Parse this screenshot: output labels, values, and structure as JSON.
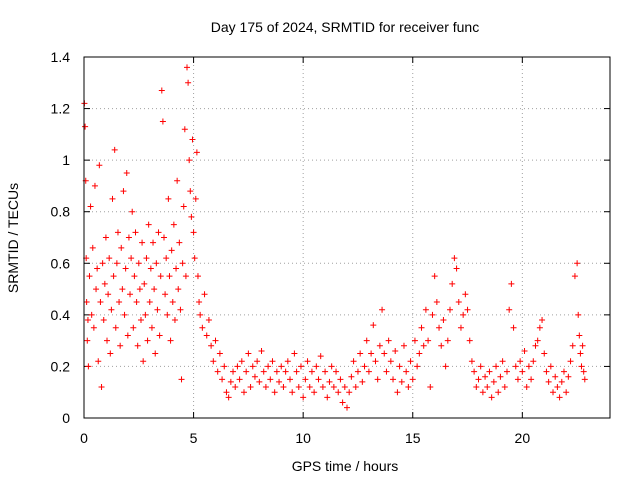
{
  "chart_data": {
    "type": "scatter",
    "title": "Day 175 of 2024, SRMTID for receiver func",
    "xlabel": "GPS time / hours",
    "ylabel": "SRMTID / TECUs",
    "xlim": [
      0,
      24
    ],
    "ylim": [
      0,
      1.4
    ],
    "grid": true,
    "x_ticks": [
      0,
      5,
      10,
      15,
      20
    ],
    "x_tick_labels": [
      "0",
      "5",
      "10",
      "15",
      "20"
    ],
    "y_ticks": [
      0,
      0.2,
      0.4,
      0.6,
      0.8,
      1.0,
      1.2,
      1.4
    ],
    "y_tick_labels": [
      "0",
      "0.2",
      "0.4",
      "0.6",
      "0.8",
      "1",
      "1.2",
      "1.4"
    ],
    "marker": "+",
    "series": [
      {
        "name": "SRMTID",
        "color": "#ff0000",
        "points": [
          [
            0.02,
            1.22
          ],
          [
            0.05,
            1.13
          ],
          [
            0.08,
            0.92
          ],
          [
            0.1,
            0.62
          ],
          [
            0.12,
            0.45
          ],
          [
            0.15,
            0.3
          ],
          [
            0.18,
            0.38
          ],
          [
            0.2,
            0.2
          ],
          [
            0.25,
            0.55
          ],
          [
            0.3,
            0.82
          ],
          [
            0.35,
            0.4
          ],
          [
            0.4,
            0.66
          ],
          [
            0.45,
            0.35
          ],
          [
            0.5,
            0.9
          ],
          [
            0.55,
            0.5
          ],
          [
            0.6,
            0.58
          ],
          [
            0.65,
            0.22
          ],
          [
            0.7,
            0.98
          ],
          [
            0.75,
            0.45
          ],
          [
            0.8,
            0.12
          ],
          [
            0.85,
            0.6
          ],
          [
            0.9,
            0.38
          ],
          [
            0.95,
            0.52
          ],
          [
            1.0,
            0.7
          ],
          [
            1.05,
            0.3
          ],
          [
            1.1,
            0.48
          ],
          [
            1.15,
            0.62
          ],
          [
            1.2,
            0.25
          ],
          [
            1.25,
            0.42
          ],
          [
            1.3,
            0.85
          ],
          [
            1.35,
            0.55
          ],
          [
            1.4,
            1.04
          ],
          [
            1.45,
            0.35
          ],
          [
            1.5,
            0.6
          ],
          [
            1.55,
            0.72
          ],
          [
            1.6,
            0.45
          ],
          [
            1.65,
            0.28
          ],
          [
            1.7,
            0.66
          ],
          [
            1.75,
            0.5
          ],
          [
            1.8,
            0.88
          ],
          [
            1.85,
            0.4
          ],
          [
            1.9,
            0.58
          ],
          [
            1.95,
            0.95
          ],
          [
            2.0,
            0.32
          ],
          [
            2.05,
            0.7
          ],
          [
            2.1,
            0.48
          ],
          [
            2.15,
            0.62
          ],
          [
            2.2,
            0.8
          ],
          [
            2.25,
            0.35
          ],
          [
            2.3,
            0.55
          ],
          [
            2.35,
            0.72
          ],
          [
            2.4,
            0.45
          ],
          [
            2.45,
            0.28
          ],
          [
            2.5,
            0.6
          ],
          [
            2.55,
            0.5
          ],
          [
            2.6,
            0.38
          ],
          [
            2.65,
            0.68
          ],
          [
            2.7,
            0.22
          ],
          [
            2.75,
            0.52
          ],
          [
            2.8,
            0.4
          ],
          [
            2.85,
            0.62
          ],
          [
            2.9,
            0.3
          ],
          [
            2.95,
            0.75
          ],
          [
            3.0,
            0.45
          ],
          [
            3.05,
            0.58
          ],
          [
            3.1,
            0.35
          ],
          [
            3.15,
            0.68
          ],
          [
            3.2,
            0.5
          ],
          [
            3.25,
            0.25
          ],
          [
            3.3,
            0.6
          ],
          [
            3.35,
            0.42
          ],
          [
            3.4,
            0.72
          ],
          [
            3.45,
            0.32
          ],
          [
            3.5,
            0.55
          ],
          [
            3.55,
            1.27
          ],
          [
            3.6,
            1.15
          ],
          [
            3.65,
            0.7
          ],
          [
            3.7,
            0.48
          ],
          [
            3.75,
            0.62
          ],
          [
            3.8,
            0.4
          ],
          [
            3.85,
            0.85
          ],
          [
            3.9,
            0.55
          ],
          [
            3.95,
            0.3
          ],
          [
            4.0,
            0.65
          ],
          [
            4.05,
            0.45
          ],
          [
            4.1,
            0.75
          ],
          [
            4.15,
            0.38
          ],
          [
            4.2,
            0.58
          ],
          [
            4.25,
            0.92
          ],
          [
            4.3,
            0.5
          ],
          [
            4.35,
            0.68
          ],
          [
            4.4,
            0.42
          ],
          [
            4.45,
            0.15
          ],
          [
            4.5,
            0.6
          ],
          [
            4.55,
            0.82
          ],
          [
            4.6,
            1.12
          ],
          [
            4.65,
            0.55
          ],
          [
            4.7,
            1.36
          ],
          [
            4.75,
            1.3
          ],
          [
            4.8,
            1.0
          ],
          [
            4.85,
            0.88
          ],
          [
            4.9,
            0.78
          ],
          [
            4.95,
            1.08
          ],
          [
            5.0,
            0.72
          ],
          [
            5.05,
            0.62
          ],
          [
            5.1,
            0.85
          ],
          [
            5.15,
            1.03
          ],
          [
            5.2,
            0.55
          ],
          [
            5.25,
            0.45
          ],
          [
            5.3,
            0.4
          ],
          [
            5.4,
            0.35
          ],
          [
            5.5,
            0.48
          ],
          [
            5.6,
            0.32
          ],
          [
            5.7,
            0.38
          ],
          [
            5.8,
            0.28
          ],
          [
            5.9,
            0.22
          ],
          [
            6.0,
            0.3
          ],
          [
            6.1,
            0.18
          ],
          [
            6.2,
            0.25
          ],
          [
            6.3,
            0.15
          ],
          [
            6.4,
            0.2
          ],
          [
            6.5,
            0.1
          ],
          [
            6.6,
            0.08
          ],
          [
            6.7,
            0.14
          ],
          [
            6.8,
            0.18
          ],
          [
            6.9,
            0.12
          ],
          [
            7.0,
            0.2
          ],
          [
            7.1,
            0.15
          ],
          [
            7.2,
            0.22
          ],
          [
            7.3,
            0.1
          ],
          [
            7.4,
            0.18
          ],
          [
            7.5,
            0.25
          ],
          [
            7.6,
            0.12
          ],
          [
            7.7,
            0.2
          ],
          [
            7.8,
            0.16
          ],
          [
            7.9,
            0.22
          ],
          [
            8.0,
            0.14
          ],
          [
            8.1,
            0.26
          ],
          [
            8.2,
            0.18
          ],
          [
            8.3,
            0.12
          ],
          [
            8.4,
            0.2
          ],
          [
            8.5,
            0.15
          ],
          [
            8.6,
            0.22
          ],
          [
            8.7,
            0.1
          ],
          [
            8.8,
            0.18
          ],
          [
            8.9,
            0.14
          ],
          [
            9.0,
            0.2
          ],
          [
            9.1,
            0.12
          ],
          [
            9.2,
            0.18
          ],
          [
            9.3,
            0.22
          ],
          [
            9.4,
            0.15
          ],
          [
            9.5,
            0.1
          ],
          [
            9.6,
            0.25
          ],
          [
            9.7,
            0.18
          ],
          [
            9.8,
            0.12
          ],
          [
            9.9,
            0.2
          ],
          [
            10.0,
            0.08
          ],
          [
            10.1,
            0.15
          ],
          [
            10.2,
            0.22
          ],
          [
            10.3,
            0.12
          ],
          [
            10.4,
            0.18
          ],
          [
            10.5,
            0.1
          ],
          [
            10.6,
            0.2
          ],
          [
            10.7,
            0.15
          ],
          [
            10.8,
            0.24
          ],
          [
            10.9,
            0.12
          ],
          [
            11.0,
            0.18
          ],
          [
            11.1,
            0.08
          ],
          [
            11.2,
            0.14
          ],
          [
            11.3,
            0.2
          ],
          [
            11.4,
            0.12
          ],
          [
            11.5,
            0.18
          ],
          [
            11.6,
            0.1
          ],
          [
            11.7,
            0.15
          ],
          [
            11.8,
            0.06
          ],
          [
            11.9,
            0.12
          ],
          [
            12.0,
            0.04
          ],
          [
            12.1,
            0.1
          ],
          [
            12.2,
            0.16
          ],
          [
            12.3,
            0.22
          ],
          [
            12.4,
            0.12
          ],
          [
            12.5,
            0.18
          ],
          [
            12.6,
            0.25
          ],
          [
            12.7,
            0.14
          ],
          [
            12.8,
            0.2
          ],
          [
            12.9,
            0.3
          ],
          [
            13.0,
            0.18
          ],
          [
            13.1,
            0.25
          ],
          [
            13.2,
            0.36
          ],
          [
            13.3,
            0.22
          ],
          [
            13.4,
            0.15
          ],
          [
            13.5,
            0.28
          ],
          [
            13.6,
            0.42
          ],
          [
            13.7,
            0.25
          ],
          [
            13.8,
            0.18
          ],
          [
            13.9,
            0.3
          ],
          [
            14.0,
            0.22
          ],
          [
            14.1,
            0.15
          ],
          [
            14.2,
            0.26
          ],
          [
            14.3,
            0.1
          ],
          [
            14.4,
            0.2
          ],
          [
            14.5,
            0.14
          ],
          [
            14.6,
            0.28
          ],
          [
            14.7,
            0.18
          ],
          [
            14.8,
            0.12
          ],
          [
            14.9,
            0.22
          ],
          [
            15.0,
            0.15
          ],
          [
            15.1,
            0.3
          ],
          [
            15.2,
            0.2
          ],
          [
            15.3,
            0.25
          ],
          [
            15.4,
            0.35
          ],
          [
            15.5,
            0.28
          ],
          [
            15.6,
            0.42
          ],
          [
            15.7,
            0.3
          ],
          [
            15.8,
            0.12
          ],
          [
            15.9,
            0.4
          ],
          [
            16.0,
            0.55
          ],
          [
            16.1,
            0.45
          ],
          [
            16.2,
            0.35
          ],
          [
            16.3,
            0.28
          ],
          [
            16.4,
            0.38
          ],
          [
            16.5,
            0.2
          ],
          [
            16.6,
            0.3
          ],
          [
            16.7,
            0.42
          ],
          [
            16.8,
            0.52
          ],
          [
            16.9,
            0.62
          ],
          [
            17.0,
            0.58
          ],
          [
            17.1,
            0.45
          ],
          [
            17.2,
            0.35
          ],
          [
            17.3,
            0.4
          ],
          [
            17.4,
            0.48
          ],
          [
            17.5,
            0.42
          ],
          [
            17.6,
            0.3
          ],
          [
            17.7,
            0.22
          ],
          [
            17.8,
            0.18
          ],
          [
            17.9,
            0.12
          ],
          [
            18.0,
            0.15
          ],
          [
            18.1,
            0.2
          ],
          [
            18.2,
            0.1
          ],
          [
            18.3,
            0.16
          ],
          [
            18.4,
            0.12
          ],
          [
            18.5,
            0.18
          ],
          [
            18.6,
            0.08
          ],
          [
            18.7,
            0.14
          ],
          [
            18.8,
            0.2
          ],
          [
            18.9,
            0.1
          ],
          [
            19.0,
            0.16
          ],
          [
            19.1,
            0.22
          ],
          [
            19.2,
            0.12
          ],
          [
            19.3,
            0.18
          ],
          [
            19.4,
            0.42
          ],
          [
            19.5,
            0.52
          ],
          [
            19.6,
            0.35
          ],
          [
            19.7,
            0.2
          ],
          [
            19.8,
            0.15
          ],
          [
            19.9,
            0.22
          ],
          [
            20.0,
            0.18
          ],
          [
            20.1,
            0.26
          ],
          [
            20.2,
            0.12
          ],
          [
            20.3,
            0.2
          ],
          [
            20.4,
            0.15
          ],
          [
            20.5,
            0.22
          ],
          [
            20.6,
            0.28
          ],
          [
            20.7,
            0.3
          ],
          [
            20.8,
            0.35
          ],
          [
            20.9,
            0.38
          ],
          [
            21.0,
            0.25
          ],
          [
            21.1,
            0.18
          ],
          [
            21.2,
            0.14
          ],
          [
            21.3,
            0.2
          ],
          [
            21.4,
            0.1
          ],
          [
            21.5,
            0.16
          ],
          [
            21.6,
            0.12
          ],
          [
            21.7,
            0.08
          ],
          [
            21.8,
            0.14
          ],
          [
            21.9,
            0.18
          ],
          [
            22.0,
            0.1
          ],
          [
            22.1,
            0.16
          ],
          [
            22.2,
            0.22
          ],
          [
            22.3,
            0.28
          ],
          [
            22.4,
            0.55
          ],
          [
            22.5,
            0.6
          ],
          [
            22.55,
            0.4
          ],
          [
            22.6,
            0.32
          ],
          [
            22.65,
            0.25
          ],
          [
            22.7,
            0.2
          ],
          [
            22.75,
            0.28
          ],
          [
            22.8,
            0.18
          ],
          [
            22.85,
            0.15
          ]
        ]
      }
    ]
  }
}
